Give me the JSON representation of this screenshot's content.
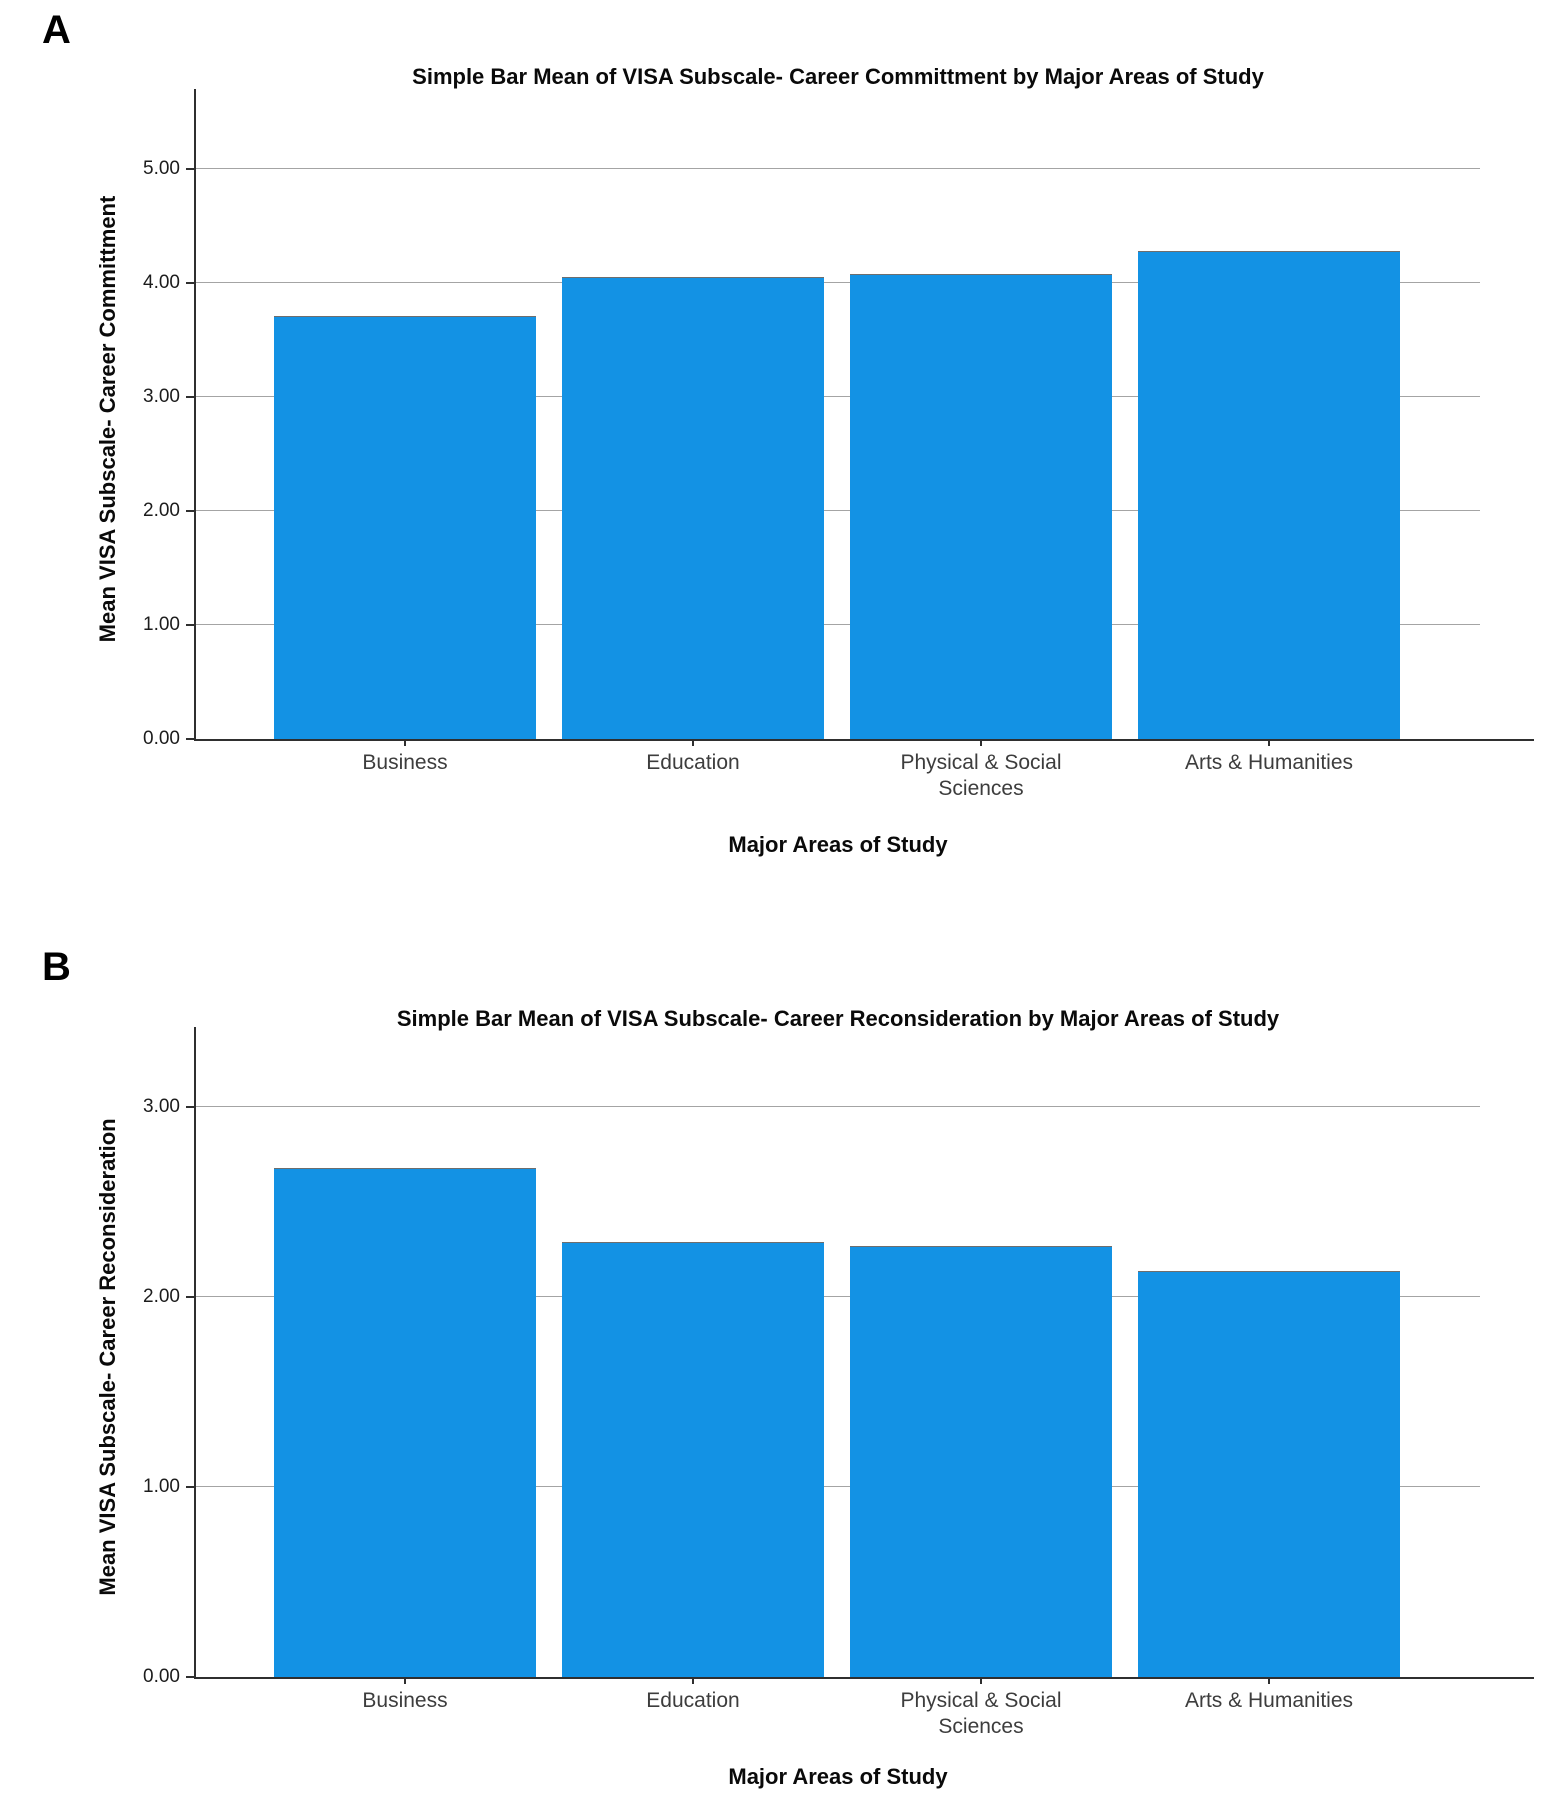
{
  "figure": {
    "panels": [
      {
        "letter": "A"
      },
      {
        "letter": "B"
      }
    ]
  },
  "chart_data": [
    {
      "type": "bar",
      "title": "Simple Bar Mean of VISA Subscale- Career Committment by Major Areas of Study",
      "categories": [
        "Business",
        "Education",
        "Physical & Social Sciences",
        "Arts & Humanities"
      ],
      "values": [
        3.71,
        4.05,
        4.08,
        4.28
      ],
      "xlabel": "Major Areas of Study",
      "ylabel": "Mean VISA Subscale- Career Committment",
      "ytick_values": [
        0,
        1,
        2,
        3,
        4,
        5
      ],
      "ytick_labels": [
        "0.00",
        "1.00",
        "2.00",
        "3.00",
        "4.00",
        "5.00"
      ],
      "ylim": [
        0,
        5.61
      ],
      "grid": true,
      "legend": "none",
      "bar_color": "#1392E4",
      "gridline_color": "#A4A4A4",
      "axis_color": "#2F2F2F"
    },
    {
      "type": "bar",
      "title": "Simple Bar Mean of VISA Subscale- Career Reconsideration by Major Areas of Study",
      "categories": [
        "Business",
        "Education",
        "Physical & Social Sciences",
        "Arts & Humanities"
      ],
      "values": [
        2.68,
        2.29,
        2.27,
        2.14
      ],
      "xlabel": "Major Areas of Study",
      "ylabel": "Mean VISA Subscale- Career Reconsideration",
      "ytick_values": [
        0,
        1,
        2,
        3
      ],
      "ytick_labels": [
        "0.00",
        "1.00",
        "2.00",
        "3.00"
      ],
      "ylim": [
        0,
        3.37
      ],
      "grid": true,
      "legend": "none",
      "bar_color": "#1392E4",
      "gridline_color": "#A4A4A4",
      "axis_color": "#2F2F2F"
    }
  ]
}
